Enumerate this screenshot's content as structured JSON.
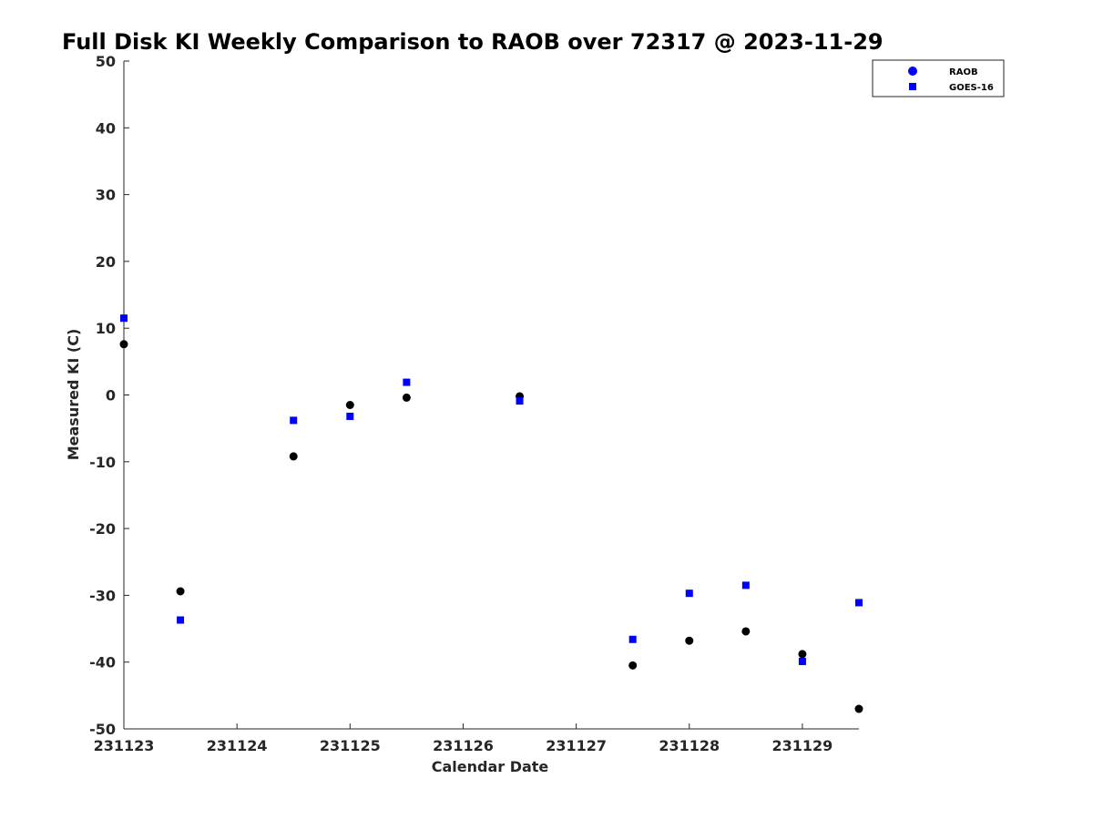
{
  "chart_data": {
    "type": "scatter",
    "title": "Full Disk KI Weekly Comparison to RAOB over 72317 @ 2023-11-29",
    "xlabel": "Calendar Date",
    "ylabel": "Measured KI (C)",
    "xlim": [
      "2023-11-23",
      "2023-11-29 12:00"
    ],
    "ylim": [
      -50,
      50
    ],
    "x_tick_labels": [
      "231123",
      "231124",
      "231125",
      "231126",
      "231127",
      "231128",
      "231129"
    ],
    "y_ticks": [
      -50,
      -40,
      -30,
      -20,
      -10,
      0,
      10,
      20,
      30,
      40,
      50
    ],
    "grid": false,
    "legend_position": "top-right",
    "series": [
      {
        "name": "RAOB",
        "marker": "circle",
        "color": "#000000",
        "legend_color": "#0000ff",
        "points": [
          {
            "x": "2023-11-23 00:00",
            "y": 7.6
          },
          {
            "x": "2023-11-23 12:00",
            "y": -29.4
          },
          {
            "x": "2023-11-24 12:00",
            "y": -9.2
          },
          {
            "x": "2023-11-25 00:00",
            "y": -1.5
          },
          {
            "x": "2023-11-25 12:00",
            "y": -0.4
          },
          {
            "x": "2023-11-26 12:00",
            "y": -0.2
          },
          {
            "x": "2023-11-27 12:00",
            "y": -40.5
          },
          {
            "x": "2023-11-28 00:00",
            "y": -36.8
          },
          {
            "x": "2023-11-28 12:00",
            "y": -35.4
          },
          {
            "x": "2023-11-29 00:00",
            "y": -38.8
          },
          {
            "x": "2023-11-29 12:00",
            "y": -47.0
          }
        ]
      },
      {
        "name": "GOES-16",
        "marker": "square",
        "color": "#0000ff",
        "legend_color": "#0000ff",
        "points": [
          {
            "x": "2023-11-23 00:00",
            "y": 11.5
          },
          {
            "x": "2023-11-23 12:00",
            "y": -33.7
          },
          {
            "x": "2023-11-24 12:00",
            "y": -3.8
          },
          {
            "x": "2023-11-25 00:00",
            "y": -3.2
          },
          {
            "x": "2023-11-25 12:00",
            "y": 1.9
          },
          {
            "x": "2023-11-26 12:00",
            "y": -0.9
          },
          {
            "x": "2023-11-27 12:00",
            "y": -36.6
          },
          {
            "x": "2023-11-28 00:00",
            "y": -29.7
          },
          {
            "x": "2023-11-28 12:00",
            "y": -28.5
          },
          {
            "x": "2023-11-29 00:00",
            "y": -39.9
          },
          {
            "x": "2023-11-29 12:00",
            "y": -31.1
          }
        ]
      }
    ]
  }
}
